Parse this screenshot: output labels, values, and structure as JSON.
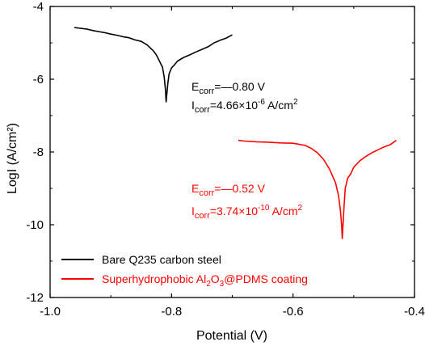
{
  "chart_data": {
    "type": "line",
    "xlabel": "Potential (V)",
    "ylabel": "LogI (A/cm²)",
    "xlim": [
      -1.0,
      -0.4
    ],
    "ylim": [
      -12,
      -4
    ],
    "xticks": [
      -1.0,
      -0.8,
      -0.6,
      -0.4
    ],
    "xtick_labels": [
      "-1.0",
      "-0.8",
      "-0.6",
      "-0.4"
    ],
    "yticks": [
      -12,
      -10,
      -8,
      -6,
      -4
    ],
    "ytick_labels": [
      "-12",
      "-10",
      "-8",
      "-6",
      "-4"
    ],
    "grid": false,
    "legend_position": "bottom-left",
    "series": [
      {
        "name": "Bare Q235 carbon steel",
        "color": "#000000",
        "points": [
          [
            -0.96,
            -4.58
          ],
          [
            -0.95,
            -4.6
          ],
          [
            -0.94,
            -4.62
          ],
          [
            -0.93,
            -4.66
          ],
          [
            -0.92,
            -4.69
          ],
          [
            -0.91,
            -4.72
          ],
          [
            -0.9,
            -4.76
          ],
          [
            -0.89,
            -4.79
          ],
          [
            -0.88,
            -4.83
          ],
          [
            -0.87,
            -4.86
          ],
          [
            -0.86,
            -4.92
          ],
          [
            -0.85,
            -4.96
          ],
          [
            -0.84,
            -5.06
          ],
          [
            -0.83,
            -5.22
          ],
          [
            -0.825,
            -5.33
          ],
          [
            -0.82,
            -5.5
          ],
          [
            -0.815,
            -5.67
          ],
          [
            -0.812,
            -5.95
          ],
          [
            -0.81,
            -6.3
          ],
          [
            -0.809,
            -6.62
          ],
          [
            -0.808,
            -6.45
          ],
          [
            -0.806,
            -6.1
          ],
          [
            -0.804,
            -5.85
          ],
          [
            -0.8,
            -5.69
          ],
          [
            -0.795,
            -5.6
          ],
          [
            -0.79,
            -5.5
          ],
          [
            -0.78,
            -5.4
          ],
          [
            -0.77,
            -5.33
          ],
          [
            -0.76,
            -5.25
          ],
          [
            -0.75,
            -5.18
          ],
          [
            -0.74,
            -5.11
          ],
          [
            -0.73,
            -5.0
          ],
          [
            -0.72,
            -4.93
          ],
          [
            -0.71,
            -4.87
          ],
          [
            -0.7,
            -4.78
          ]
        ]
      },
      {
        "name": "Superhydrophobic Al2O3@PDMS coating",
        "color": "#ff0000",
        "points": [
          [
            -0.69,
            -7.68
          ],
          [
            -0.68,
            -7.7
          ],
          [
            -0.66,
            -7.72
          ],
          [
            -0.64,
            -7.73
          ],
          [
            -0.62,
            -7.75
          ],
          [
            -0.6,
            -7.76
          ],
          [
            -0.58,
            -7.82
          ],
          [
            -0.57,
            -7.9
          ],
          [
            -0.56,
            -8.02
          ],
          [
            -0.55,
            -8.2
          ],
          [
            -0.54,
            -8.47
          ],
          [
            -0.53,
            -8.85
          ],
          [
            -0.525,
            -9.2
          ],
          [
            -0.522,
            -9.6
          ],
          [
            -0.52,
            -10.0
          ],
          [
            -0.519,
            -10.38
          ],
          [
            -0.518,
            -10.1
          ],
          [
            -0.516,
            -9.5
          ],
          [
            -0.514,
            -9.0
          ],
          [
            -0.51,
            -8.72
          ],
          [
            -0.505,
            -8.6
          ],
          [
            -0.5,
            -8.42
          ],
          [
            -0.49,
            -8.24
          ],
          [
            -0.48,
            -8.12
          ],
          [
            -0.47,
            -8.02
          ],
          [
            -0.46,
            -7.94
          ],
          [
            -0.45,
            -7.86
          ],
          [
            -0.44,
            -7.8
          ],
          [
            -0.435,
            -7.74
          ],
          [
            -0.43,
            -7.68
          ]
        ]
      }
    ],
    "annotations": [
      {
        "series": 0,
        "color": "#000000",
        "ecorr": {
          "symbol": "E",
          "sub": "corr",
          "text": "=—0.80 V"
        },
        "icorr": {
          "symbol": "I",
          "sub": "corr",
          "text": "=4.66×10",
          "sup": "-6",
          "unit": " A/cm",
          "unit_sup": "2"
        }
      },
      {
        "series": 1,
        "color": "#ff0000",
        "ecorr": {
          "symbol": "E",
          "sub": "corr",
          "text": "=—0.52 V"
        },
        "icorr": {
          "symbol": "I",
          "sub": "corr",
          "text": "=3.74×10",
          "sup": "-10",
          "unit": " A/cm",
          "unit_sup": "2"
        }
      }
    ],
    "legend": [
      {
        "text": "Bare Q235 carbon steel",
        "color": "#000000"
      },
      {
        "text_parts": [
          "Superhydrophobic Al",
          "2",
          "O",
          "3",
          "@PDMS coating"
        ],
        "color": "#ff0000"
      }
    ]
  }
}
